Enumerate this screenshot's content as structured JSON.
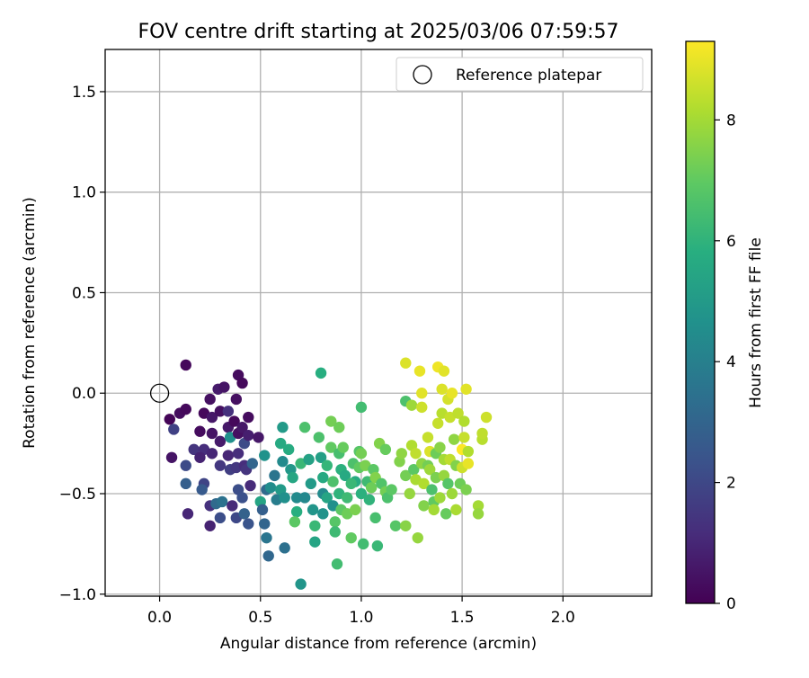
{
  "chart_data": {
    "type": "scatter",
    "title": "FOV centre drift starting at 2025/03/06 07:59:57",
    "xlabel": "Angular distance from reference (arcmin)",
    "ylabel": "Rotation from reference (arcmin)",
    "xlim": [
      -0.27,
      2.44
    ],
    "ylim": [
      -1.01,
      1.71
    ],
    "xticks": [
      0.0,
      0.5,
      1.0,
      1.5,
      2.0
    ],
    "xtick_labels": [
      "0.0",
      "0.5",
      "1.0",
      "1.5",
      "2.0"
    ],
    "yticks": [
      -1.0,
      -0.5,
      0.0,
      0.5,
      1.0,
      1.5
    ],
    "ytick_labels": [
      "−1.0",
      "−0.5",
      "0.0",
      "0.5",
      "1.0",
      "1.5"
    ],
    "grid": true,
    "legend": {
      "position": "top-right",
      "entries": [
        "Reference platepar"
      ]
    },
    "reference_point": {
      "x": 0.0,
      "y": 0.0,
      "label": "Reference platepar"
    },
    "colorbar": {
      "label": "Hours from first FF file",
      "range": [
        0,
        9.3
      ],
      "ticks": [
        0,
        2,
        4,
        6,
        8
      ],
      "tick_labels": [
        "0",
        "2",
        "4",
        "6",
        "8"
      ],
      "colormap": "viridis"
    },
    "series": [
      {
        "name": "drift",
        "points": [
          [
            0.13,
            0.14,
            0.2
          ],
          [
            0.05,
            -0.13,
            0.1
          ],
          [
            0.1,
            -0.1,
            0.3
          ],
          [
            0.13,
            -0.08,
            0.2
          ],
          [
            0.07,
            -0.18,
            1.8
          ],
          [
            0.06,
            -0.32,
            0.5
          ],
          [
            0.13,
            -0.36,
            2.1
          ],
          [
            0.13,
            -0.45,
            2.8
          ],
          [
            0.14,
            -0.6,
            1.0
          ],
          [
            0.17,
            -0.28,
            1.4
          ],
          [
            0.2,
            -0.19,
            0.3
          ],
          [
            0.22,
            -0.1,
            0.2
          ],
          [
            0.22,
            -0.28,
            1.2
          ],
          [
            0.2,
            -0.32,
            0.9
          ],
          [
            0.22,
            -0.45,
            1.9
          ],
          [
            0.21,
            -0.48,
            2.6
          ],
          [
            0.25,
            -0.03,
            0.4
          ],
          [
            0.26,
            -0.12,
            0.6
          ],
          [
            0.26,
            -0.2,
            0.5
          ],
          [
            0.26,
            -0.3,
            1.0
          ],
          [
            0.25,
            -0.56,
            1.3
          ],
          [
            0.25,
            -0.66,
            0.9
          ],
          [
            0.29,
            0.02,
            0.7
          ],
          [
            0.3,
            -0.09,
            0.4
          ],
          [
            0.3,
            -0.24,
            0.7
          ],
          [
            0.3,
            -0.36,
            1.5
          ],
          [
            0.28,
            -0.55,
            3.2
          ],
          [
            0.3,
            -0.62,
            2.2
          ],
          [
            0.31,
            -0.54,
            3.5
          ],
          [
            0.32,
            0.03,
            0.5
          ],
          [
            0.34,
            -0.09,
            1.3
          ],
          [
            0.34,
            -0.17,
            0.6
          ],
          [
            0.35,
            -0.22,
            4.6
          ],
          [
            0.34,
            -0.31,
            1.0
          ],
          [
            0.35,
            -0.38,
            1.7
          ],
          [
            0.36,
            -0.56,
            1.1
          ],
          [
            0.38,
            -0.03,
            0.4
          ],
          [
            0.37,
            -0.14,
            0.2
          ],
          [
            0.39,
            -0.2,
            0.4
          ],
          [
            0.39,
            -0.3,
            1.2
          ],
          [
            0.38,
            -0.37,
            1.5
          ],
          [
            0.39,
            -0.48,
            2.2
          ],
          [
            0.38,
            -0.62,
            2.0
          ],
          [
            0.39,
            0.09,
            0.3
          ],
          [
            0.41,
            0.05,
            0.2
          ],
          [
            0.41,
            -0.17,
            0.6
          ],
          [
            0.42,
            -0.25,
            2.1
          ],
          [
            0.42,
            -0.36,
            1.2
          ],
          [
            0.41,
            -0.52,
            2.3
          ],
          [
            0.42,
            -0.6,
            2.9
          ],
          [
            0.44,
            -0.12,
            0.3
          ],
          [
            0.44,
            -0.21,
            0.8
          ],
          [
            0.43,
            -0.38,
            1.4
          ],
          [
            0.44,
            -0.65,
            2.4
          ],
          [
            0.45,
            -0.46,
            1.1
          ],
          [
            0.46,
            -0.35,
            3.0
          ],
          [
            0.49,
            -0.22,
            0.6
          ],
          [
            0.5,
            -0.54,
            5.4
          ],
          [
            0.51,
            -0.58,
            2.8
          ],
          [
            0.52,
            -0.65,
            3.0
          ],
          [
            0.53,
            -0.72,
            3.6
          ],
          [
            0.54,
            -0.81,
            3.1
          ],
          [
            0.52,
            -0.31,
            4.7
          ],
          [
            0.53,
            -0.48,
            3.2
          ],
          [
            0.55,
            -0.47,
            4.5
          ],
          [
            0.57,
            -0.41,
            3.6
          ],
          [
            0.58,
            -0.53,
            3.9
          ],
          [
            0.6,
            -0.48,
            5.0
          ],
          [
            0.6,
            -0.25,
            5.6
          ],
          [
            0.61,
            -0.17,
            5.0
          ],
          [
            0.61,
            -0.34,
            4.4
          ],
          [
            0.62,
            -0.52,
            4.6
          ],
          [
            0.62,
            -0.77,
            3.4
          ],
          [
            0.64,
            -0.28,
            5.7
          ],
          [
            0.65,
            -0.38,
            4.9
          ],
          [
            0.66,
            -0.42,
            5.5
          ],
          [
            0.68,
            -0.52,
            4.4
          ],
          [
            0.68,
            -0.59,
            5.8
          ],
          [
            0.67,
            -0.64,
            6.9
          ],
          [
            0.7,
            -0.35,
            6.2
          ],
          [
            0.72,
            -0.17,
            6.6
          ],
          [
            0.72,
            -0.52,
            4.3
          ],
          [
            0.7,
            -0.95,
            4.8
          ],
          [
            0.74,
            -0.33,
            5.3
          ],
          [
            0.75,
            -0.45,
            5.0
          ],
          [
            0.76,
            -0.58,
            4.8
          ],
          [
            0.77,
            -0.66,
            6.2
          ],
          [
            0.77,
            -0.74,
            5.4
          ],
          [
            0.79,
            -0.22,
            6.6
          ],
          [
            0.8,
            -0.32,
            5.2
          ],
          [
            0.8,
            0.1,
            5.8
          ],
          [
            0.81,
            -0.42,
            5.6
          ],
          [
            0.81,
            -0.5,
            4.4
          ],
          [
            0.81,
            -0.6,
            4.7
          ],
          [
            0.83,
            -0.36,
            6.1
          ],
          [
            0.83,
            -0.52,
            5.4
          ],
          [
            0.85,
            -0.14,
            7.3
          ],
          [
            0.85,
            -0.27,
            7.0
          ],
          [
            0.86,
            -0.44,
            6.6
          ],
          [
            0.86,
            -0.56,
            4.6
          ],
          [
            0.87,
            -0.64,
            6.8
          ],
          [
            0.87,
            -0.69,
            6.3
          ],
          [
            0.89,
            -0.17,
            7.2
          ],
          [
            0.89,
            -0.3,
            6.5
          ],
          [
            0.9,
            -0.38,
            5.9
          ],
          [
            0.89,
            -0.5,
            6.0
          ],
          [
            0.9,
            -0.58,
            6.9
          ],
          [
            0.88,
            -0.85,
            6.4
          ],
          [
            0.91,
            -0.27,
            7.1
          ],
          [
            0.92,
            -0.41,
            5.6
          ],
          [
            0.93,
            -0.52,
            6.3
          ],
          [
            0.93,
            -0.6,
            7.2
          ],
          [
            0.95,
            -0.72,
            7.0
          ],
          [
            0.96,
            -0.35,
            6.6
          ],
          [
            0.97,
            -0.44,
            5.7
          ],
          [
            0.97,
            -0.58,
            7.4
          ],
          [
            0.99,
            -0.29,
            6.8
          ],
          [
            0.99,
            -0.37,
            7.0
          ],
          [
            1.0,
            -0.07,
            6.4
          ],
          [
            1.0,
            -0.5,
            5.9
          ],
          [
            1.01,
            -0.75,
            6.4
          ],
          [
            1.02,
            -0.36,
            7.4
          ],
          [
            1.03,
            -0.44,
            6.3
          ],
          [
            1.04,
            -0.53,
            6.0
          ],
          [
            1.05,
            -0.47,
            7.2
          ],
          [
            1.06,
            -0.38,
            6.9
          ],
          [
            1.07,
            -0.62,
            6.5
          ],
          [
            1.07,
            -0.42,
            7.5
          ],
          [
            1.08,
            -0.76,
            6.2
          ],
          [
            1.09,
            -0.25,
            7.5
          ],
          [
            1.1,
            -0.45,
            6.7
          ],
          [
            1.12,
            -0.28,
            7.1
          ],
          [
            1.12,
            -0.49,
            7.3
          ],
          [
            1.13,
            -0.52,
            6.6
          ],
          [
            1.15,
            -0.48,
            6.9
          ],
          [
            1.17,
            -0.66,
            6.8
          ],
          [
            1.19,
            -0.34,
            7.5
          ],
          [
            1.2,
            -0.3,
            7.7
          ],
          [
            1.22,
            0.15,
            8.8
          ],
          [
            1.22,
            -0.04,
            6.6
          ],
          [
            1.22,
            -0.41,
            7.3
          ],
          [
            1.22,
            -0.66,
            7.6
          ],
          [
            1.24,
            -0.5,
            7.8
          ],
          [
            1.25,
            -0.26,
            8.2
          ],
          [
            1.25,
            -0.06,
            7.9
          ],
          [
            1.26,
            -0.38,
            6.9
          ],
          [
            1.27,
            -0.3,
            8.4
          ],
          [
            1.27,
            -0.43,
            8.1
          ],
          [
            1.28,
            -0.72,
            7.8
          ],
          [
            1.29,
            0.11,
            9.0
          ],
          [
            1.3,
            0.0,
            8.9
          ],
          [
            1.3,
            -0.07,
            8.6
          ],
          [
            1.3,
            -0.35,
            7.7
          ],
          [
            1.31,
            -0.45,
            8.2
          ],
          [
            1.31,
            -0.56,
            7.5
          ],
          [
            1.33,
            -0.22,
            8.5
          ],
          [
            1.33,
            -0.36,
            7.3
          ],
          [
            1.34,
            -0.29,
            8.8
          ],
          [
            1.34,
            -0.38,
            7.9
          ],
          [
            1.35,
            -0.48,
            6.6
          ],
          [
            1.36,
            -0.54,
            7.0
          ],
          [
            1.36,
            -0.58,
            8.0
          ],
          [
            1.37,
            -0.3,
            7.2
          ],
          [
            1.37,
            -0.42,
            7.4
          ],
          [
            1.38,
            0.13,
            9.1
          ],
          [
            1.38,
            -0.15,
            8.5
          ],
          [
            1.39,
            -0.27,
            7.6
          ],
          [
            1.39,
            -0.52,
            7.9
          ],
          [
            1.4,
            0.02,
            8.8
          ],
          [
            1.4,
            -0.1,
            8.3
          ],
          [
            1.41,
            0.11,
            8.9
          ],
          [
            1.41,
            -0.33,
            8.0
          ],
          [
            1.41,
            -0.41,
            7.8
          ],
          [
            1.42,
            -0.6,
            7.1
          ],
          [
            1.43,
            -0.03,
            8.7
          ],
          [
            1.43,
            -0.45,
            6.8
          ],
          [
            1.44,
            -0.12,
            8.5
          ],
          [
            1.44,
            -0.33,
            8.4
          ],
          [
            1.45,
            0.0,
            9.0
          ],
          [
            1.45,
            -0.5,
            7.9
          ],
          [
            1.46,
            -0.23,
            7.7
          ],
          [
            1.47,
            -0.36,
            7.5
          ],
          [
            1.47,
            -0.58,
            8.1
          ],
          [
            1.48,
            -0.1,
            8.4
          ],
          [
            1.49,
            -0.45,
            7.2
          ],
          [
            1.5,
            -0.28,
            9.3
          ],
          [
            1.5,
            -0.37,
            8.6
          ],
          [
            1.51,
            -0.14,
            8.2
          ],
          [
            1.51,
            -0.22,
            8.5
          ],
          [
            1.52,
            0.02,
            8.9
          ],
          [
            1.52,
            -0.48,
            7.4
          ],
          [
            1.53,
            -0.35,
            9.0
          ],
          [
            1.53,
            -0.29,
            8.2
          ],
          [
            1.58,
            -0.56,
            8.0
          ],
          [
            1.58,
            -0.6,
            7.8
          ],
          [
            1.6,
            -0.23,
            8.3
          ],
          [
            1.6,
            -0.2,
            8.4
          ],
          [
            1.62,
            -0.12,
            8.6
          ],
          [
            1.0,
            -0.3,
            7.3
          ],
          [
            0.95,
            -0.45,
            6.2
          ]
        ]
      }
    ]
  }
}
